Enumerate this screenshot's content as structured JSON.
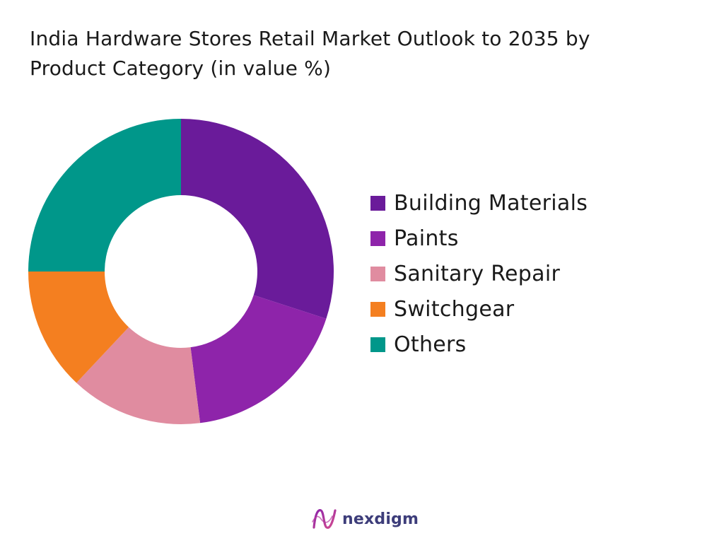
{
  "title_line1": "India Hardware Stores Retail Market Outlook to 2035 by",
  "title_line2": "Product Category (in value %)",
  "brand": {
    "name": "nexdigm",
    "icon": "nexdigm-logo-icon",
    "color": "#3d3d7a"
  },
  "chart_data": {
    "type": "pie",
    "donut": true,
    "title": "India Hardware Stores Retail Market Outlook to 2035 by Product Category (in value %)",
    "legend_position": "right",
    "categories": [
      "Building Materials",
      "Paints",
      "Sanitary Repair",
      "Switchgear",
      "Others"
    ],
    "values": [
      30,
      18,
      14,
      13,
      25
    ],
    "colors": [
      "#6a1b9a",
      "#8e24aa",
      "#e08ca0",
      "#f47f20",
      "#00978a"
    ]
  }
}
